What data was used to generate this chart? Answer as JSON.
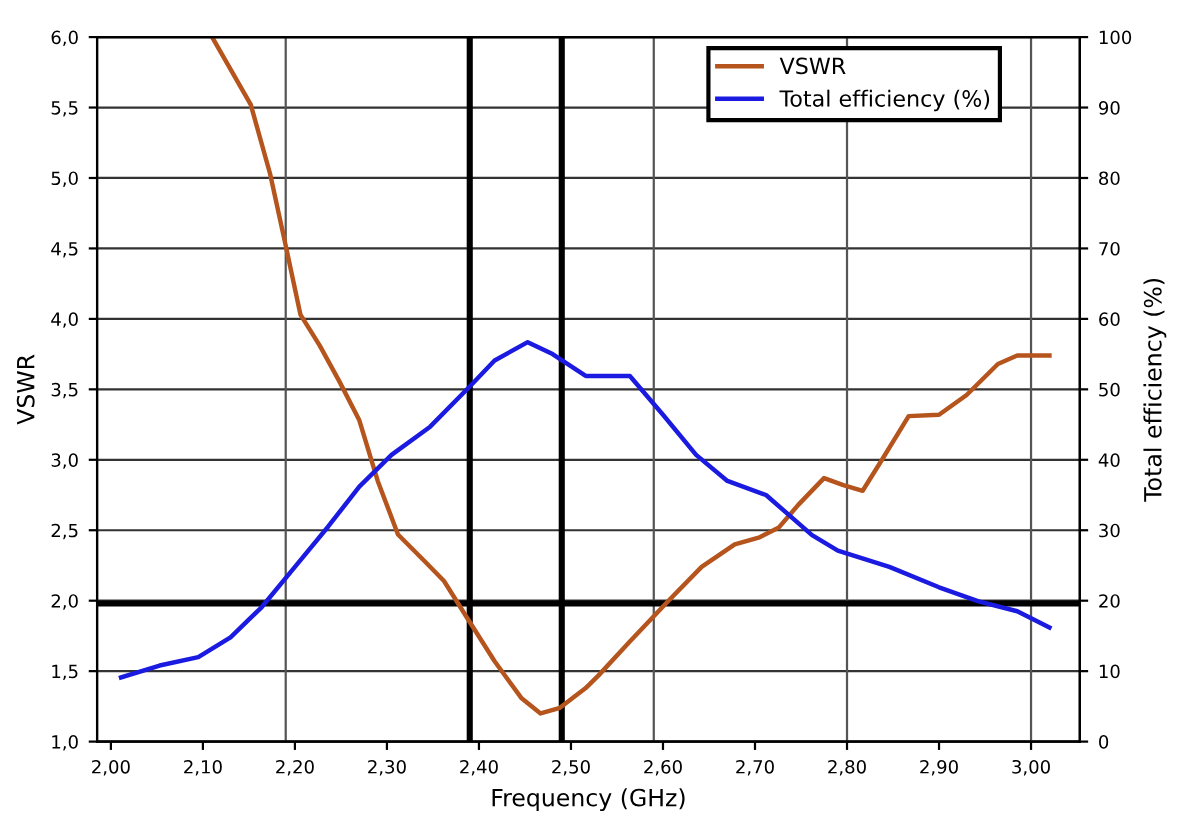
{
  "chart_data": {
    "type": "line",
    "xlabel": "Frequency (GHz)",
    "ylabel": "VSWR",
    "y2label": "Total efficiency (%)",
    "xlim": [
      1.985,
      3.053
    ],
    "xticks": [
      {
        "value": 2.0,
        "label": "2,00"
      },
      {
        "value": 2.1,
        "label": "2,10"
      },
      {
        "value": 2.2,
        "label": "2,20"
      },
      {
        "value": 2.3,
        "label": "2,30"
      },
      {
        "value": 2.4,
        "label": "2,40"
      },
      {
        "value": 2.5,
        "label": "2,50"
      },
      {
        "value": 2.6,
        "label": "2,60"
      },
      {
        "value": 2.7,
        "label": "2,70"
      },
      {
        "value": 2.8,
        "label": "2,80"
      },
      {
        "value": 2.9,
        "label": "2,90"
      },
      {
        "value": 3.0,
        "label": "3,00"
      }
    ],
    "ylim": [
      1.0,
      6.0
    ],
    "yticks": [
      {
        "value": 1.0,
        "label": "1,0"
      },
      {
        "value": 1.5,
        "label": "1,5"
      },
      {
        "value": 2.0,
        "label": "2,0"
      },
      {
        "value": 2.5,
        "label": "2,5"
      },
      {
        "value": 3.0,
        "label": "3,0"
      },
      {
        "value": 3.5,
        "label": "3,5"
      },
      {
        "value": 4.0,
        "label": "4,0"
      },
      {
        "value": 4.5,
        "label": "4,5"
      },
      {
        "value": 5.0,
        "label": "5,0"
      },
      {
        "value": 5.5,
        "label": "5,5"
      },
      {
        "value": 6.0,
        "label": "6,0"
      }
    ],
    "y2lim": [
      0,
      100
    ],
    "y2ticks": [
      0,
      10,
      20,
      30,
      40,
      50,
      60,
      70,
      80,
      90,
      100
    ],
    "grid": "y",
    "legend": "top right",
    "marker": "none",
    "line_style": "solid",
    "series": [
      {
        "name": "VSWR",
        "color": "#b5541c",
        "x": [
          2.11,
          2.152,
          2.173,
          2.19,
          2.206,
          2.227,
          2.248,
          2.27,
          2.29,
          2.312,
          2.341,
          2.362,
          2.385,
          2.417,
          2.446,
          2.467,
          2.488,
          2.516,
          2.53,
          2.564,
          2.606,
          2.642,
          2.678,
          2.705,
          2.726,
          2.747,
          2.775,
          2.796,
          2.817,
          2.838,
          2.867,
          2.9,
          2.93,
          2.964,
          2.985,
          3.02
        ],
        "values": [
          6.0,
          5.52,
          5.03,
          4.52,
          4.03,
          3.81,
          3.56,
          3.28,
          2.85,
          2.47,
          2.28,
          2.14,
          1.9,
          1.57,
          1.31,
          1.2,
          1.24,
          1.38,
          1.47,
          1.71,
          2.0,
          2.24,
          2.4,
          2.45,
          2.52,
          2.68,
          2.87,
          2.82,
          2.78,
          3.0,
          3.31,
          3.32,
          3.46,
          3.68,
          3.74,
          3.74
        ]
      },
      {
        "name": "Total efficiency (%)",
        "color": "#1a1ae0",
        "axis": "y2",
        "x": [
          2.011,
          2.053,
          2.095,
          2.13,
          2.164,
          2.2,
          2.236,
          2.27,
          2.305,
          2.347,
          2.39,
          2.417,
          2.453,
          2.48,
          2.516,
          2.564,
          2.6,
          2.636,
          2.67,
          2.712,
          2.762,
          2.79,
          2.846,
          2.9,
          2.943,
          2.985,
          3.02
        ],
        "values": [
          9.1,
          10.8,
          12.0,
          14.8,
          19.1,
          24.8,
          30.5,
          36.2,
          40.7,
          44.7,
          50.4,
          54.1,
          56.7,
          55.0,
          51.9,
          51.9,
          46.4,
          40.7,
          37.0,
          35.0,
          29.3,
          27.1,
          24.8,
          21.9,
          19.9,
          18.5,
          16.2
        ]
      }
    ],
    "ref_lines": [
      {
        "axis": "x",
        "value": 2.19,
        "color": "#555555"
      },
      {
        "axis": "x",
        "value": 2.59,
        "color": "#555555"
      },
      {
        "axis": "x",
        "value": 2.8,
        "color": "#555555"
      },
      {
        "axis": "x",
        "value": 3.0,
        "color": "#555555"
      },
      {
        "axis": "x",
        "value": 2.39,
        "color": "#000000"
      },
      {
        "axis": "x",
        "value": 2.49,
        "color": "#000000"
      },
      {
        "axis": "y",
        "value": 1.98,
        "color": "#000000"
      }
    ]
  }
}
